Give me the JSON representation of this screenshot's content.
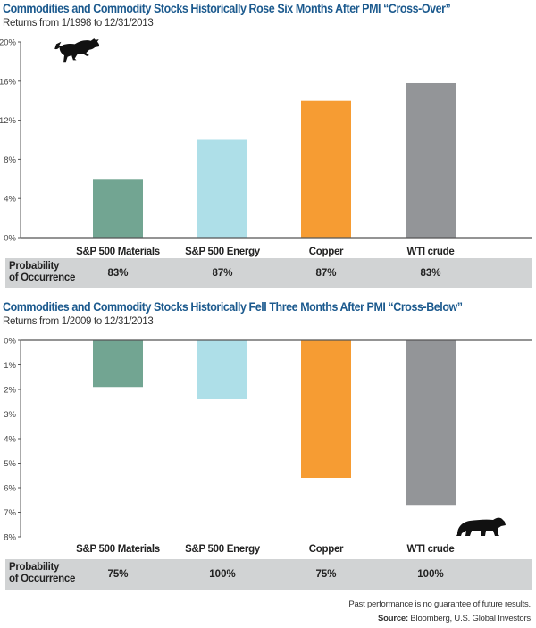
{
  "chart_data": [
    {
      "type": "bar",
      "title": "Commodities and Commodity Stocks Historically Rose Six Months After PMI “Cross-Over”",
      "subtitle": "Returns from 1/1998 to 12/31/2013",
      "categories": [
        "S&P 500 Materials",
        "S&P 500 Energy",
        "Copper",
        "WTI crude"
      ],
      "values": [
        6.0,
        10.0,
        14.0,
        15.8
      ],
      "unit": "%",
      "ylim": [
        0,
        20
      ],
      "yticks": [
        "0%",
        "4%",
        "8%",
        "12%",
        "16%",
        "20%"
      ],
      "ytick_values": [
        0,
        4,
        8,
        12,
        16,
        20
      ],
      "colors": [
        "#72a592",
        "#aedfe8",
        "#f69c33",
        "#939598"
      ],
      "icon": "bull-icon",
      "probability": {
        "label_line1": "Probability",
        "label_line2": "of Occurrence",
        "values": [
          "83%",
          "87%",
          "87%",
          "83%"
        ]
      }
    },
    {
      "type": "bar",
      "title": "Commodities and Commodity Stocks Historically Fell Three Months After PMI “Cross-Below”",
      "subtitle": "Returns from 1/2009 to 12/31/2013",
      "categories": [
        "S&P 500 Materials",
        "S&P 500 Energy",
        "Copper",
        "WTI crude"
      ],
      "values": [
        -1.9,
        -2.4,
        -5.6,
        -6.7
      ],
      "unit": "%",
      "ylim": [
        -8,
        0
      ],
      "yaxis_inverted_labels": true,
      "yticks": [
        "0%",
        "1%",
        "2%",
        "3%",
        "4%",
        "5%",
        "6%",
        "7%",
        "8%"
      ],
      "ytick_values": [
        0,
        1,
        2,
        3,
        4,
        5,
        6,
        7,
        8
      ],
      "colors": [
        "#72a592",
        "#aedfe8",
        "#f69c33",
        "#939598"
      ],
      "icon": "bear-icon",
      "probability": {
        "label_line1": "Probability",
        "label_line2": "of Occurrence",
        "values": [
          "75%",
          "100%",
          "75%",
          "100%"
        ]
      }
    }
  ],
  "footer": {
    "disclaimer": "Past performance is no guarantee of future results.",
    "source_label": "Source:",
    "source_text": " Bloomberg, U.S. Global Investors"
  }
}
